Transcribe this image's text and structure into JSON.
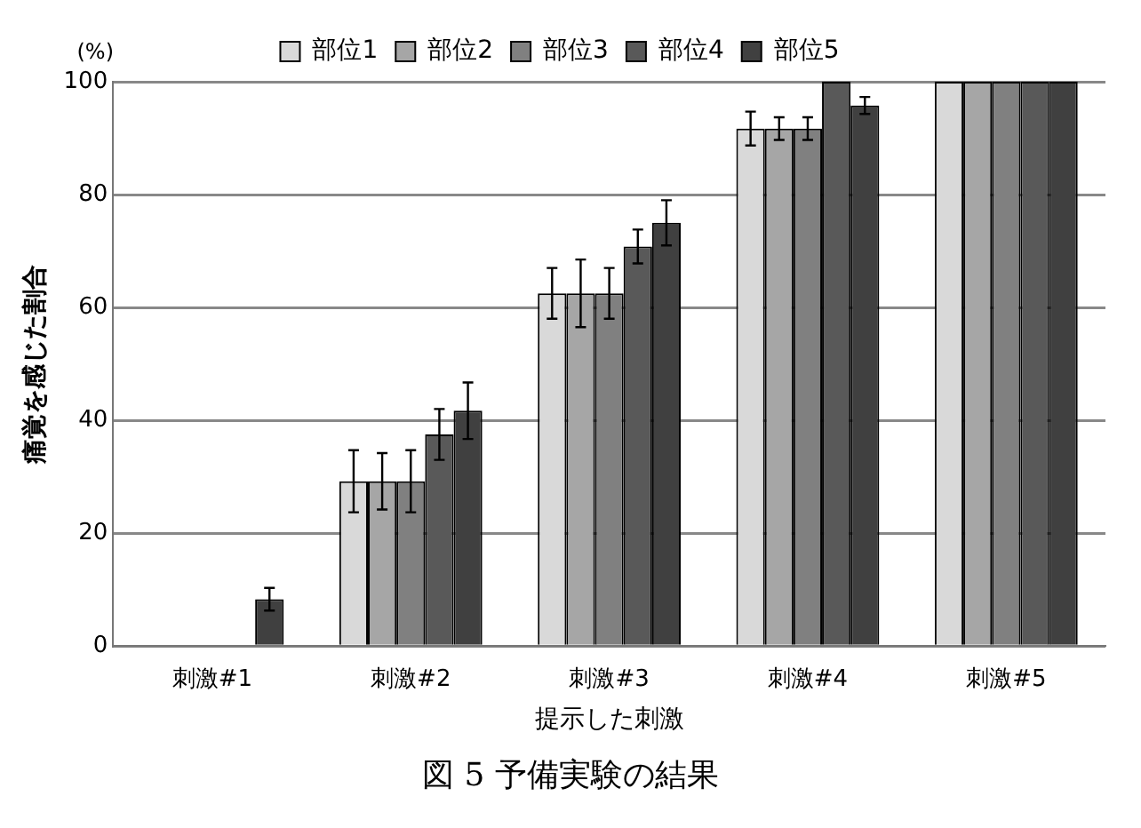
{
  "chart_data": {
    "type": "bar",
    "xlabel": "提示した刺激",
    "ylabel": "痛覚を感じた割合",
    "annotations": [
      "(%)",
      "図 5  予備実験の結果"
    ],
    "categories": [
      "刺激#1",
      "刺激#2",
      "刺激#3",
      "刺激#4",
      "刺激#5"
    ],
    "series": [
      {
        "name": "部位1",
        "color": "#d9d9d9",
        "values": [
          0,
          29.2,
          62.5,
          91.7,
          100
        ],
        "errors": [
          null,
          5.5,
          4.5,
          3,
          null
        ]
      },
      {
        "name": "部位2",
        "color": "#a6a6a6",
        "values": [
          0,
          29.2,
          62.5,
          91.7,
          100
        ],
        "errors": [
          null,
          5,
          6,
          2,
          null
        ]
      },
      {
        "name": "部位3",
        "color": "#808080",
        "values": [
          0,
          29.2,
          62.5,
          91.7,
          100
        ],
        "errors": [
          null,
          5.5,
          4.5,
          2,
          null
        ]
      },
      {
        "name": "部位4",
        "color": "#595959",
        "values": [
          0,
          37.5,
          70.8,
          100,
          100
        ],
        "errors": [
          null,
          4.5,
          3,
          null,
          null
        ]
      },
      {
        "name": "部位5",
        "color": "#404040",
        "values": [
          8.3,
          41.7,
          75,
          95.8,
          100
        ],
        "errors": [
          2,
          5,
          4,
          1.5,
          null
        ]
      }
    ],
    "ylim": [
      0,
      100
    ],
    "yticks": [
      0,
      20,
      40,
      60,
      80,
      100
    ],
    "grid": "y",
    "legend": "top"
  }
}
